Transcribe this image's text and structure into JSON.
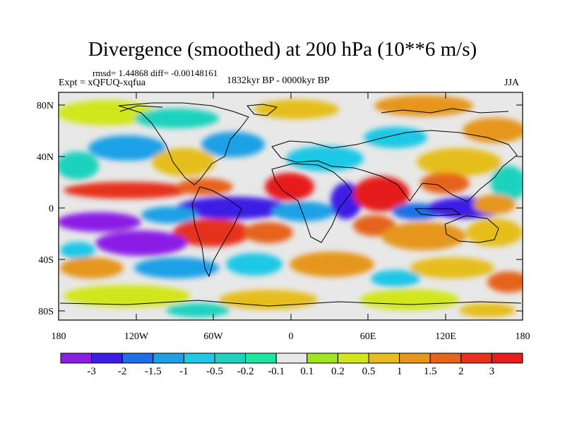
{
  "title": "Divergence (smoothed) at 200 hPa (10**6 m/s)",
  "stats": "rmsd= 1.44868 diff= -0.00148161",
  "experiment": "Expt = xQFUQ-xqfua",
  "period": "1832kyr BP - 0000kyr BP",
  "season": "JJA",
  "lat_labels": [
    "80N",
    "40N",
    "0",
    "40S",
    "80S"
  ],
  "lon_labels": [
    "180",
    "120W",
    "60W",
    "0",
    "60E",
    "120E",
    "180"
  ],
  "colorbar": {
    "colors": [
      "#8a1ee6",
      "#3c1ee6",
      "#1e6ee6",
      "#1ea0e6",
      "#1ec8e6",
      "#1ed2be",
      "#1ee6a0",
      "#e8e8e8",
      "#a0e61e",
      "#d2e61e",
      "#e6be1e",
      "#e6961e",
      "#e6641e",
      "#e6321e",
      "#e61e1e"
    ],
    "labels": [
      "-3",
      "-2",
      "-1.5",
      "-1",
      "-0.5",
      "-0.2",
      "-0.1",
      "0.1",
      "0.2",
      "0.5",
      "1",
      "1.5",
      "2",
      "3"
    ]
  }
}
